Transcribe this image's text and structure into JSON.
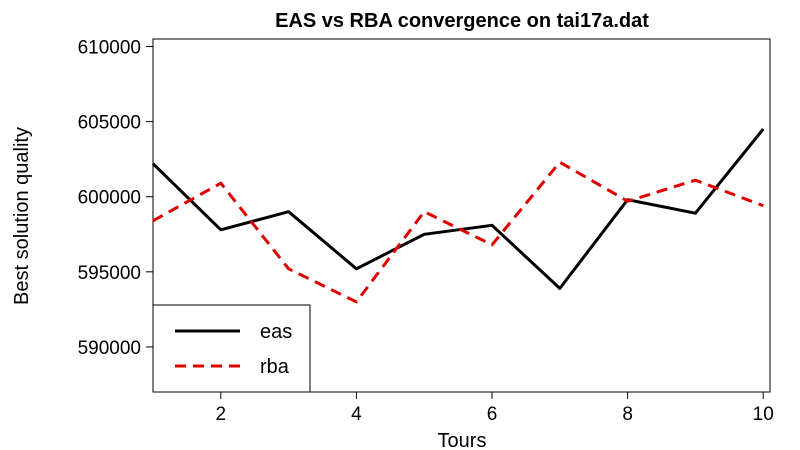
{
  "chart_data": {
    "type": "line",
    "title": "EAS vs RBA convergence on tai17a.dat",
    "xlabel": "Tours",
    "ylabel": "Best solution quality",
    "x": [
      1,
      2,
      3,
      4,
      5,
      6,
      7,
      8,
      9,
      10
    ],
    "xlim": [
      1,
      10.1
    ],
    "ylim": [
      587000,
      610500
    ],
    "x_ticks": [
      2,
      4,
      6,
      8,
      10
    ],
    "y_ticks": [
      590000,
      595000,
      600000,
      605000,
      610000
    ],
    "grid": false,
    "legend_position": "bottom-left",
    "series": [
      {
        "name": "eas",
        "color": "#000000",
        "style": "solid",
        "values": [
          602200,
          597800,
          599000,
          595200,
          597500,
          598100,
          593900,
          599800,
          598900,
          604500
        ]
      },
      {
        "name": "rba",
        "color": "#e00000",
        "style": "dashed",
        "values": [
          598400,
          600900,
          595200,
          593000,
          599000,
          596800,
          602300,
          599700,
          601100,
          599400
        ]
      }
    ]
  }
}
